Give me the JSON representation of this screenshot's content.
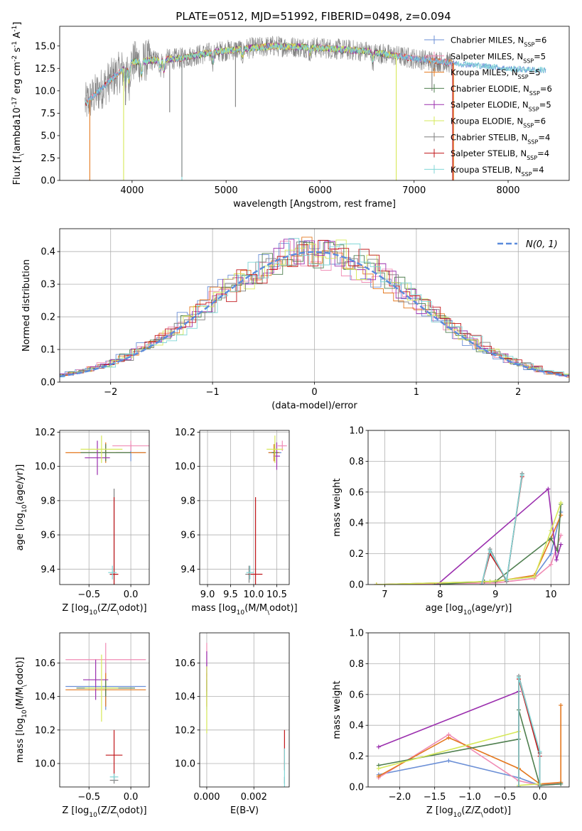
{
  "figure_title": "PLATE=0512, MJD=51992, FIBERID=0498, z=0.094",
  "colors": {
    "chabrier_miles": "#6b8fd6",
    "salpeter_miles": "#f08bb4",
    "kroupa_miles": "#e4781e",
    "chabrier_elodie": "#4f7f4f",
    "salpeter_elodie": "#9b2fae",
    "kroupa_elodie": "#d6e858",
    "chabrier_stelib": "#7f7f7f",
    "salpeter_stelib": "#c0161a",
    "kroupa_stelib": "#7fd6d6",
    "normal": "#5b8bdc"
  },
  "chart_data": [
    {
      "type": "line",
      "id": "spectrum",
      "title": "PLATE=0512, MJD=51992, FIBERID=0498, z=0.094",
      "xlabel": "wavelength [Angstrom, rest frame]",
      "ylabel": "Flux [f$_\\lambda$10$^{-17}$ erg cm$^{-2}$ s$^{-1}$ A$^{-1}$]",
      "xlim": [
        3230,
        8650
      ],
      "ylim": [
        0,
        17.2
      ],
      "xticks": [
        4000,
        5000,
        6000,
        7000,
        8000
      ],
      "yticks": [
        0.0,
        2.5,
        5.0,
        7.5,
        10.0,
        12.5,
        15.0
      ],
      "grid": false,
      "legend_position": "top-right",
      "series": [
        {
          "name": "Chabrier MILES, N$_{SSP}$=6",
          "key": "chabrier_miles"
        },
        {
          "name": "Salpeter MILES, N$_{SSP}$=5",
          "key": "salpeter_miles"
        },
        {
          "name": "Kroupa MILES, N$_{SSP}$=5",
          "key": "kroupa_miles"
        },
        {
          "name": "Chabrier ELODIE, N$_{SSP}$=6",
          "key": "chabrier_elodie"
        },
        {
          "name": "Salpeter ELODIE, N$_{SSP}$=5",
          "key": "salpeter_elodie"
        },
        {
          "name": "Kroupa ELODIE, N$_{SSP}$=6",
          "key": "kroupa_elodie"
        },
        {
          "name": "Chabrier STELIB, N$_{SSP}$=4",
          "key": "chabrier_stelib"
        },
        {
          "name": "Salpeter STELIB, N$_{SSP}$=4",
          "key": "salpeter_stelib"
        },
        {
          "name": "Kroupa STELIB, N$_{SSP}$=4",
          "key": "kroupa_stelib"
        }
      ],
      "continuum": {
        "x": [
          3450,
          3600,
          3800,
          4000,
          4200,
          4500,
          4800,
          5000,
          5500,
          6000,
          6500,
          7000,
          7500,
          7800,
          8100,
          8400
        ],
        "y": [
          8.0,
          9.5,
          11.5,
          13.2,
          13.4,
          13.6,
          14.2,
          14.5,
          15.0,
          14.8,
          14.4,
          13.6,
          13.0,
          12.7,
          12.4,
          12.3
        ]
      },
      "stelib_range": [
        3500,
        7400
      ],
      "miles_range": [
        3530,
        7420
      ],
      "elodie_range": [
        3880,
        6810
      ],
      "drops": [
        {
          "x": 3550,
          "key": "kroupa_miles",
          "y": 0
        },
        {
          "x": 3910,
          "key": "kroupa_elodie",
          "y": 0
        },
        {
          "x": 3930,
          "key": "chabrier_stelib",
          "y": 8.4
        },
        {
          "x": 4400,
          "key": "chabrier_stelib",
          "y": 7.6
        },
        {
          "x": 4530,
          "key": "kroupa_stelib",
          "y": 0
        },
        {
          "x": 4530,
          "key": "chabrier_stelib",
          "y": 0.4
        },
        {
          "x": 5100,
          "key": "chabrier_stelib",
          "y": 8.2
        },
        {
          "x": 6810,
          "key": "kroupa_elodie",
          "y": 0
        },
        {
          "x": 7190,
          "key": "chabrier_stelib",
          "y": 10.0
        },
        {
          "x": 7410,
          "key": "salpeter_stelib",
          "y": 0
        },
        {
          "x": 7420,
          "key": "kroupa_miles",
          "y": 0
        }
      ]
    },
    {
      "type": "histogram",
      "id": "residuals",
      "xlabel": "(data-model)/error",
      "ylabel": "Normed distribution",
      "xlim": [
        -2.5,
        2.5
      ],
      "ylim": [
        0,
        0.47
      ],
      "xticks": [
        -2,
        -1,
        0,
        1,
        2
      ],
      "yticks": [
        0.0,
        0.1,
        0.2,
        0.3,
        0.4
      ],
      "grid": true,
      "legend_position": "top-right",
      "bin_width": 0.1,
      "normal_label": "$\\mathcal{N}(0,1)$",
      "series_keys": [
        "chabrier_miles",
        "salpeter_miles",
        "kroupa_miles",
        "chabrier_elodie",
        "salpeter_elodie",
        "kroupa_elodie",
        "chabrier_stelib",
        "salpeter_stelib",
        "kroupa_stelib"
      ]
    },
    {
      "type": "errorbar",
      "id": "age_vs_Z",
      "xlabel": "Z [log$_{10}$($Z/Z_\\odot$)]",
      "ylabel": "age  [log$_{10}$($age/yr$)]",
      "xlim": [
        -0.85,
        0.22
      ],
      "ylim": [
        9.31,
        10.21
      ],
      "xticks": [
        -0.5,
        0.0
      ],
      "yticks": [
        9.4,
        9.6,
        9.8,
        10.0,
        10.2
      ],
      "grid": true,
      "points": [
        {
          "key": "chabrier_miles",
          "x": 0.0,
          "xerr": 0.18,
          "y": 10.08,
          "yerr": 0.05
        },
        {
          "key": "salpeter_miles",
          "x": 0.0,
          "xerr": 0.22,
          "y": 10.12,
          "yerr": 0.03
        },
        {
          "key": "kroupa_miles",
          "x": -0.3,
          "xerr": 0.48,
          "y": 10.08,
          "yerr": 0.06
        },
        {
          "key": "chabrier_elodie",
          "x": -0.3,
          "xerr": 0.3,
          "y": 10.08,
          "yerr": 0.05
        },
        {
          "key": "salpeter_elodie",
          "x": -0.4,
          "xerr": 0.15,
          "y": 10.05,
          "yerr": 0.1
        },
        {
          "key": "kroupa_elodie",
          "x": -0.35,
          "xerr": 0.25,
          "y": 10.1,
          "yerr": 0.08
        },
        {
          "key": "chabrier_stelib",
          "x": -0.2,
          "xerr": 0.05,
          "y": 9.37,
          "yerr": 0.5
        },
        {
          "key": "salpeter_stelib",
          "x": -0.2,
          "xerr": 0.05,
          "y": 9.37,
          "yerr": 0.45
        },
        {
          "key": "kroupa_stelib",
          "x": -0.22,
          "xerr": 0.05,
          "y": 9.38,
          "yerr": 0.04
        }
      ]
    },
    {
      "type": "errorbar",
      "id": "age_vs_mass",
      "xlabel": "mass [log$_{10}$($M/M_\\odot$)]",
      "ylabel": "",
      "xlim": [
        8.83,
        10.77
      ],
      "ylim": [
        9.31,
        10.21
      ],
      "xticks": [
        9.0,
        9.5,
        10.0,
        10.5
      ],
      "yticks": [
        9.4,
        9.6,
        9.8,
        10.0,
        10.2
      ],
      "grid": true,
      "points": [
        {
          "key": "chabrier_miles",
          "x": 10.46,
          "xerr": 0.14,
          "y": 10.08,
          "yerr": 0.05
        },
        {
          "key": "salpeter_miles",
          "x": 10.62,
          "xerr": 0.1,
          "y": 10.12,
          "yerr": 0.03
        },
        {
          "key": "kroupa_miles",
          "x": 10.44,
          "xerr": 0.12,
          "y": 10.08,
          "yerr": 0.05
        },
        {
          "key": "chabrier_elodie",
          "x": 10.46,
          "xerr": 0.07,
          "y": 10.08,
          "yerr": 0.05
        },
        {
          "key": "salpeter_elodie",
          "x": 10.5,
          "xerr": 0.07,
          "y": 10.06,
          "yerr": 0.08
        },
        {
          "key": "kroupa_elodie",
          "x": 10.46,
          "xerr": 0.18,
          "y": 10.1,
          "yerr": 0.08
        },
        {
          "key": "chabrier_stelib",
          "x": 9.9,
          "xerr": 0.08,
          "y": 9.37,
          "yerr": 0.05
        },
        {
          "key": "salpeter_stelib",
          "x": 10.04,
          "xerr": 0.15,
          "y": 9.37,
          "yerr": 0.45
        },
        {
          "key": "kroupa_stelib",
          "x": 9.92,
          "xerr": 0.08,
          "y": 9.38,
          "yerr": 0.04
        }
      ]
    },
    {
      "type": "line",
      "id": "weight_vs_age",
      "xlabel": "age  [log$_{10}$($age/yr$)]",
      "ylabel": "mass weight",
      "xlim": [
        6.7,
        10.33
      ],
      "ylim": [
        0,
        1.0
      ],
      "xticks": [
        7,
        8,
        9,
        10
      ],
      "yticks": [
        0.0,
        0.2,
        0.4,
        0.6,
        0.8,
        1.0
      ],
      "grid": true,
      "series": [
        {
          "key": "chabrier_miles",
          "x": [
            6.85,
            8.9,
            9.7,
            10.0,
            10.18
          ],
          "y": [
            0.0,
            0.02,
            0.05,
            0.2,
            0.47
          ]
        },
        {
          "key": "salpeter_miles",
          "x": [
            6.85,
            9.0,
            9.7,
            10.0,
            10.18
          ],
          "y": [
            0.0,
            0.01,
            0.04,
            0.13,
            0.32
          ]
        },
        {
          "key": "kroupa_miles",
          "x": [
            6.85,
            9.0,
            9.7,
            10.0,
            10.18
          ],
          "y": [
            0.0,
            0.02,
            0.06,
            0.3,
            0.45
          ]
        },
        {
          "key": "chabrier_elodie",
          "x": [
            7.9,
            8.8,
            9.0,
            10.0,
            10.12,
            10.18
          ],
          "y": [
            0.0,
            0.02,
            0.02,
            0.3,
            0.22,
            0.52
          ]
        },
        {
          "key": "salpeter_elodie",
          "x": [
            7.95,
            9.95,
            10.1,
            10.18
          ],
          "y": [
            0.0,
            0.62,
            0.16,
            0.26
          ]
        },
        {
          "key": "kroupa_elodie",
          "x": [
            6.85,
            8.9,
            9.7,
            10.0,
            10.18
          ],
          "y": [
            0.0,
            0.02,
            0.05,
            0.35,
            0.53
          ]
        },
        {
          "key": "chabrier_stelib",
          "x": [
            8.75,
            8.9,
            9.2,
            9.48
          ],
          "y": [
            0.0,
            0.23,
            0.02,
            0.72
          ]
        },
        {
          "key": "salpeter_stelib",
          "x": [
            8.75,
            8.9,
            9.2,
            9.48
          ],
          "y": [
            0.0,
            0.2,
            0.03,
            0.7
          ]
        },
        {
          "key": "kroupa_stelib",
          "x": [
            8.75,
            8.9,
            9.2,
            9.48
          ],
          "y": [
            0.0,
            0.22,
            0.03,
            0.71
          ]
        }
      ]
    },
    {
      "type": "errorbar",
      "id": "mass_vs_Z",
      "xlabel": "Z [log$_{10}$($Z/Z_\\odot$)]",
      "ylabel": "mass [log$_{10}$($M/M_\\odot$)]",
      "xlim": [
        -0.85,
        0.22
      ],
      "ylim": [
        9.86,
        10.78
      ],
      "xticks": [
        -0.5,
        0.0
      ],
      "yticks": [
        10.0,
        10.2,
        10.4,
        10.6
      ],
      "grid": true,
      "points": [
        {
          "key": "chabrier_miles",
          "x": -0.3,
          "xerr": 0.48,
          "y": 10.46,
          "yerr": 0.14
        },
        {
          "key": "salpeter_miles",
          "x": -0.3,
          "xerr": 0.48,
          "y": 10.62,
          "yerr": 0.1
        },
        {
          "key": "kroupa_miles",
          "x": -0.3,
          "xerr": 0.48,
          "y": 10.44,
          "yerr": 0.1
        },
        {
          "key": "chabrier_elodie",
          "x": -0.3,
          "xerr": 0.35,
          "y": 10.45,
          "yerr": 0.05
        },
        {
          "key": "salpeter_elodie",
          "x": -0.42,
          "xerr": 0.15,
          "y": 10.5,
          "yerr": 0.12
        },
        {
          "key": "kroupa_elodie",
          "x": -0.35,
          "xerr": 0.2,
          "y": 10.45,
          "yerr": 0.2
        },
        {
          "key": "chabrier_stelib",
          "x": -0.2,
          "xerr": 0.05,
          "y": 9.9,
          "yerr": 0.02
        },
        {
          "key": "salpeter_stelib",
          "x": -0.2,
          "xerr": 0.1,
          "y": 10.05,
          "yerr": 0.15
        },
        {
          "key": "kroupa_stelib",
          "x": -0.2,
          "xerr": 0.05,
          "y": 9.92,
          "yerr": 0.02
        }
      ]
    },
    {
      "type": "errorbar",
      "id": "mass_vs_EBV",
      "xlabel": "E(B-V)",
      "ylabel": "",
      "xlim": [
        -0.0003,
        0.0035
      ],
      "ylim": [
        9.86,
        10.78
      ],
      "xticks": [
        0.0,
        0.002
      ],
      "yticks": [
        10.0,
        10.2,
        10.4,
        10.6
      ],
      "grid": true,
      "points": [
        {
          "key": "chabrier_miles",
          "x": 0.0,
          "xerr": 0.0,
          "y": 10.46,
          "yerr": 0.14
        },
        {
          "key": "salpeter_miles",
          "x": 0.0,
          "xerr": 0.0,
          "y": 10.62,
          "yerr": 0.1
        },
        {
          "key": "kroupa_miles",
          "x": 0.0,
          "xerr": 0.0,
          "y": 10.44,
          "yerr": 0.1
        },
        {
          "key": "chabrier_elodie",
          "x": 0.0,
          "xerr": 0.0,
          "y": 10.45,
          "yerr": 0.05
        },
        {
          "key": "salpeter_elodie",
          "x": 0.0,
          "xerr": 0.0,
          "y": 10.55,
          "yerr": 0.12
        },
        {
          "key": "kroupa_elodie",
          "x": 0.0,
          "xerr": 0.0,
          "y": 10.38,
          "yerr": 0.2
        },
        {
          "key": "chabrier_stelib",
          "x": 0.0033,
          "xerr": 0.0,
          "y": 9.9,
          "yerr": 0.02
        },
        {
          "key": "salpeter_stelib",
          "x": 0.0033,
          "xerr": 0.0,
          "y": 10.08,
          "yerr": 0.12
        },
        {
          "key": "kroupa_stelib",
          "x": 0.0033,
          "xerr": 0.0,
          "y": 9.97,
          "yerr": 0.12
        }
      ]
    },
    {
      "type": "line",
      "id": "weight_vs_Z",
      "xlabel": "Z [log$_{10}$($Z/Z_\\odot$)]",
      "ylabel": "mass weight",
      "xlim": [
        -2.45,
        0.42
      ],
      "ylim": [
        0,
        1.0
      ],
      "xticks": [
        -2.0,
        -1.5,
        -1.0,
        -0.5,
        0.0
      ],
      "yticks": [
        0.0,
        0.2,
        0.4,
        0.6,
        0.8,
        1.0
      ],
      "grid": true,
      "series": [
        {
          "key": "chabrier_miles",
          "x": [
            -2.3,
            -1.3,
            -0.3,
            0.0,
            0.3
          ],
          "y": [
            0.08,
            0.17,
            0.06,
            0.01,
            0.02
          ]
        },
        {
          "key": "salpeter_miles",
          "x": [
            -2.3,
            -1.3,
            -0.3,
            0.0,
            0.3
          ],
          "y": [
            0.06,
            0.34,
            0.04,
            0.01,
            0.03
          ]
        },
        {
          "key": "kroupa_miles",
          "x": [
            -2.3,
            -1.3,
            -0.3,
            0.0,
            0.3,
            0.3
          ],
          "y": [
            0.07,
            0.32,
            0.12,
            0.02,
            0.03,
            0.53
          ]
        },
        {
          "key": "chabrier_elodie",
          "x": [
            -2.3,
            -0.3,
            -0.3,
            0.0,
            0.3
          ],
          "y": [
            0.14,
            0.31,
            0.5,
            0.01,
            0.02
          ]
        },
        {
          "key": "salpeter_elodie",
          "x": [
            -2.3,
            -0.3
          ],
          "y": [
            0.26,
            0.62
          ]
        },
        {
          "key": "kroupa_elodie",
          "x": [
            -2.3,
            -0.3,
            -0.3,
            0.0
          ],
          "y": [
            0.12,
            0.36,
            0.01,
            0.02
          ]
        },
        {
          "key": "chabrier_stelib",
          "x": [
            -0.3,
            -0.3,
            0.0,
            0.0
          ],
          "y": [
            0.0,
            0.72,
            0.22,
            0.0
          ]
        },
        {
          "key": "salpeter_stelib",
          "x": [
            -0.3,
            -0.3,
            0.0,
            0.0
          ],
          "y": [
            0.0,
            0.7,
            0.2,
            0.0
          ]
        },
        {
          "key": "kroupa_stelib",
          "x": [
            -0.3,
            -0.3,
            0.0,
            0.0
          ],
          "y": [
            0.0,
            0.71,
            0.23,
            0.0
          ]
        }
      ]
    }
  ]
}
